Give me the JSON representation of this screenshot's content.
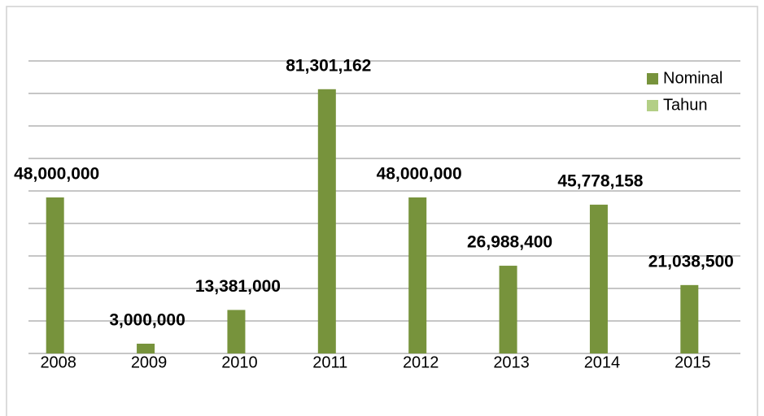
{
  "chart_data": {
    "type": "bar",
    "categories": [
      "2008",
      "2009",
      "2010",
      "2011",
      "2012",
      "2013",
      "2014",
      "2015"
    ],
    "series": [
      {
        "name": "Nominal",
        "color": "#77933c",
        "values": [
          48000000,
          3000000,
          13381000,
          81301162,
          48000000,
          26988400,
          45778158,
          21038500
        ],
        "value_labels": [
          "48,000,000",
          "3,000,000",
          "13,381,000",
          "81,301,162",
          "48,000,000",
          "26,988,400",
          "45,778,158",
          "21,038,500"
        ]
      },
      {
        "name": "Tahun",
        "color": "#b3cf86",
        "values": [
          2008,
          2009,
          2010,
          2011,
          2012,
          2013,
          2014,
          2015
        ]
      }
    ],
    "ylim": [
      0,
      90000000
    ],
    "yticks": [
      0,
      10000000,
      20000000,
      30000000,
      40000000,
      50000000,
      60000000,
      70000000,
      80000000,
      90000000
    ],
    "grid": true,
    "legend": "top-right"
  }
}
